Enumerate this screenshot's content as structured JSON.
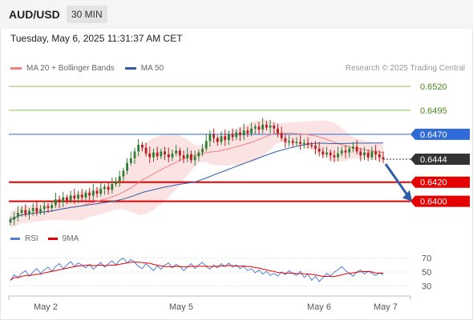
{
  "header": {
    "symbol": "AUD/USD",
    "timeframe": "30 MIN",
    "datetime": "Tuesday, May 6, 2025 11:31:37 AM CET"
  },
  "legend": {
    "ma20_label": "MA 20 + Bollinger Bands",
    "ma50_label": "MA 50",
    "copyright": "Research © 2025 Trading Central",
    "rsi_label": "RSI",
    "ma9_label": "9MA"
  },
  "colors": {
    "ma20": "#f08080",
    "ma50": "#2e5ea8",
    "bollinger_fill": "#fbdede",
    "bullish": "#2e7d32",
    "bearish": "#b71c1c",
    "resistance": "#8bc34a",
    "pivot": "#2f6bd8",
    "support": "#e50000",
    "last_price": "#333333",
    "arrow": "#2e5ea8",
    "rsi": "#4f7fd6",
    "rsi_ma": "#e50000"
  },
  "chart_data": [
    {
      "type": "candlestick",
      "title": "AUD/USD",
      "timeframe": "30 MIN",
      "x_ticks": [
        "May 2",
        "May 5",
        "May 6",
        "May 7"
      ],
      "ylim": [
        0.6373,
        0.653
      ],
      "levels": [
        {
          "label": "0.6520",
          "value": 0.652,
          "kind": "resistance"
        },
        {
          "label": "0.6495",
          "value": 0.6495,
          "kind": "resistance"
        },
        {
          "label": "0.6470",
          "value": 0.647,
          "kind": "pivot"
        },
        {
          "label": "0.6444",
          "value": 0.6444,
          "kind": "last"
        },
        {
          "label": "0.6420",
          "value": 0.642,
          "kind": "support"
        },
        {
          "label": "0.6400",
          "value": 0.64,
          "kind": "support"
        }
      ],
      "close_path": [
        0.6381,
        0.6384,
        0.6388,
        0.6391,
        0.6387,
        0.639,
        0.6393,
        0.6389,
        0.6392,
        0.6395,
        0.6393,
        0.6396,
        0.6402,
        0.6399,
        0.6404,
        0.6401,
        0.6406,
        0.6403,
        0.6407,
        0.6404,
        0.6409,
        0.6406,
        0.6411,
        0.6408,
        0.6413,
        0.6415,
        0.6412,
        0.6418,
        0.6421,
        0.6426,
        0.6432,
        0.644,
        0.6445,
        0.6452,
        0.6459,
        0.6456,
        0.645,
        0.6446,
        0.6451,
        0.6447,
        0.6452,
        0.6449,
        0.6446,
        0.645,
        0.6453,
        0.6448,
        0.6445,
        0.6449,
        0.6443,
        0.6447,
        0.6451,
        0.6455,
        0.6463,
        0.647,
        0.6466,
        0.6462,
        0.6468,
        0.6464,
        0.647,
        0.6467,
        0.6472,
        0.6469,
        0.6474,
        0.6471,
        0.6476,
        0.6478,
        0.6475,
        0.648,
        0.6477,
        0.6479,
        0.6476,
        0.6471,
        0.6466,
        0.6462,
        0.6463,
        0.6461,
        0.6462,
        0.646,
        0.6461,
        0.6459,
        0.6458,
        0.6455,
        0.6452,
        0.6449,
        0.6451,
        0.6448,
        0.6446,
        0.645,
        0.6453,
        0.6451,
        0.6455,
        0.6457,
        0.6452,
        0.6448,
        0.6451,
        0.6446,
        0.6452,
        0.6449,
        0.6446,
        0.6444
      ],
      "projection": {
        "from": 0.6444,
        "to": 0.64
      }
    },
    {
      "type": "line",
      "title": "RSI",
      "series": [
        {
          "name": "RSI"
        },
        {
          "name": "9MA"
        }
      ],
      "ylim": [
        20,
        80
      ],
      "y_ticks": [
        70,
        50,
        30
      ],
      "rsi_path": [
        38,
        46,
        42,
        48,
        52,
        44,
        50,
        55,
        48,
        53,
        57,
        51,
        58,
        62,
        55,
        60,
        65,
        58,
        63,
        60,
        56,
        61,
        54,
        59,
        64,
        57,
        62,
        66,
        60,
        67,
        70,
        63,
        68,
        64,
        58,
        55,
        62,
        57,
        52,
        59,
        54,
        60,
        63,
        56,
        61,
        58,
        52,
        57,
        62,
        55,
        60,
        64,
        58,
        54,
        60,
        56,
        62,
        58,
        63,
        57,
        60,
        55,
        58,
        52,
        55,
        49,
        53,
        47,
        51,
        45,
        48,
        44,
        50,
        46,
        52,
        48,
        45,
        51,
        42,
        47,
        38,
        44,
        36,
        42,
        48,
        44,
        50,
        53,
        58,
        52,
        48,
        44,
        50,
        53,
        47,
        51,
        48,
        45,
        49,
        46
      ]
    }
  ]
}
